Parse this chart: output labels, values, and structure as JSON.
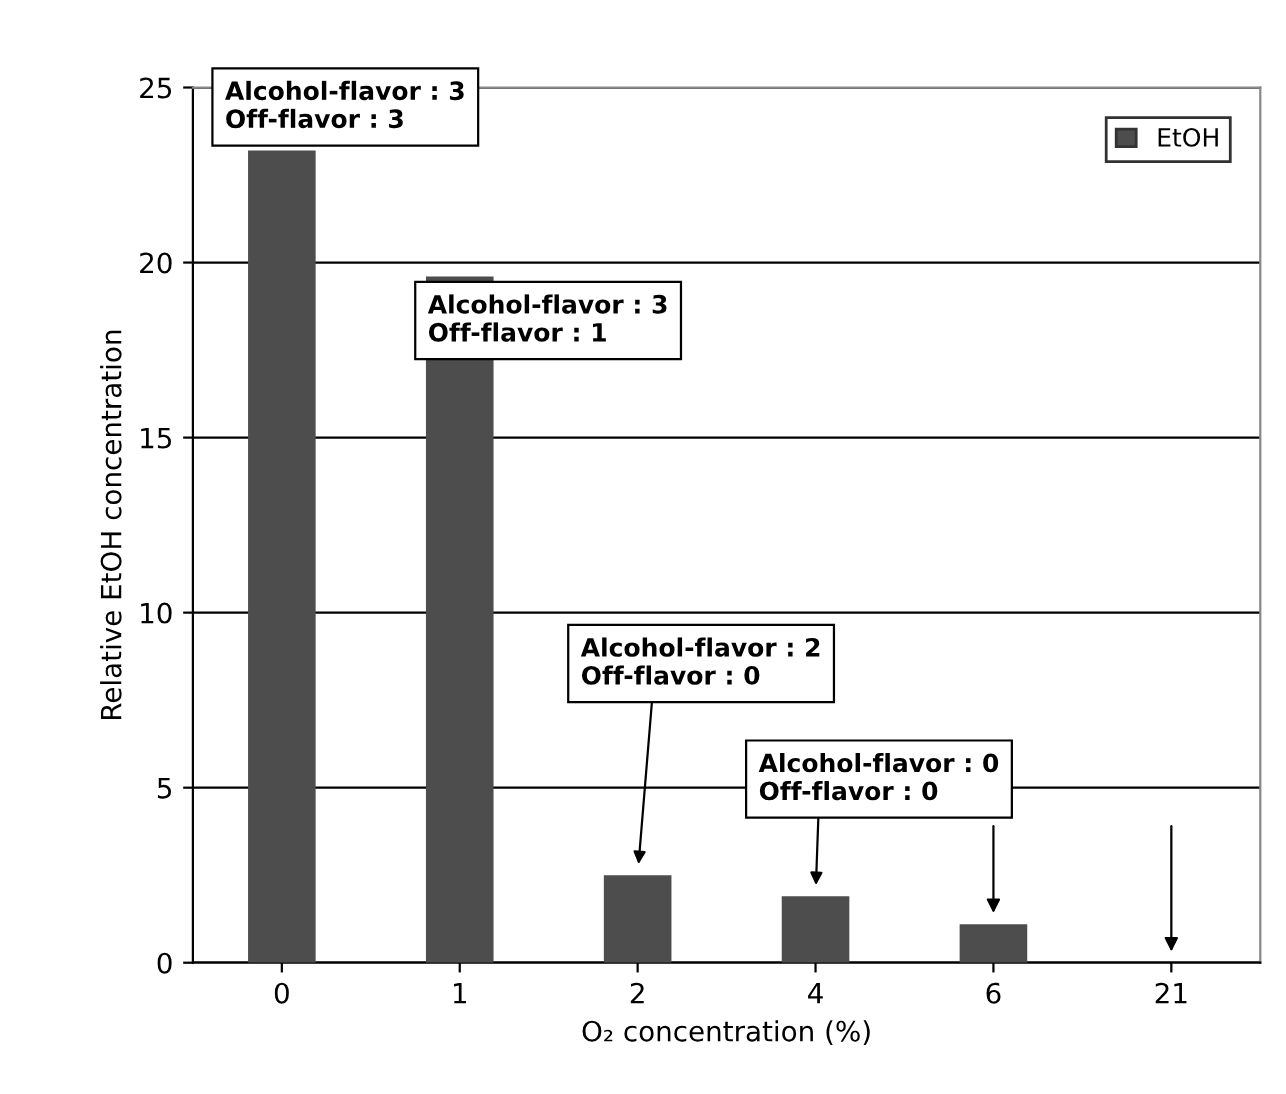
{
  "chart_data": {
    "type": "bar",
    "xlabel": "O₂ concentration (%)",
    "ylabel": "Relative EtOH concentration",
    "categories": [
      "0",
      "1",
      "2",
      "4",
      "6",
      "21"
    ],
    "series": [
      {
        "name": "EtOH",
        "color": "#4d4d4d",
        "values": [
          23.2,
          19.6,
          2.5,
          1.9,
          1.1,
          0
        ]
      }
    ],
    "ylim": [
      0,
      25
    ],
    "yticks": [
      0,
      5,
      10,
      15,
      20,
      25
    ],
    "grid": "y",
    "legend": "top right",
    "annotations": [
      {
        "text": "Alcohol-flavor : 3\nOff-flavor : 3",
        "x": "0",
        "y": 23.2
      },
      {
        "text": "Alcohol-flavor : 3\nOff-flavor : 1",
        "x": "1",
        "y": 19.6
      },
      {
        "text": "Alcohol-flavor : 2\nOff-flavor : 0",
        "x": "2",
        "y": 2.5
      },
      {
        "text": "Alcohol-flavor : 0\nOff-flavor : 0",
        "x": "4",
        "y": 1.9
      }
    ]
  }
}
